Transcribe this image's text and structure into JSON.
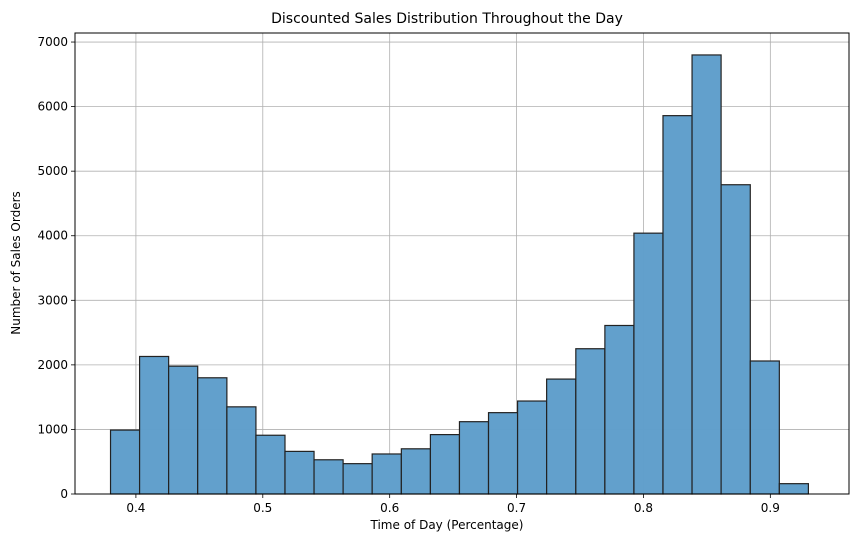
{
  "chart_data": {
    "type": "bar",
    "title": "Discounted Sales Distribution Throughout the Day",
    "xlabel": "Time of Day (Percentage)",
    "ylabel": "Number of Sales Orders",
    "xlim": [
      0.352,
      0.962
    ],
    "ylim": [
      0,
      7140
    ],
    "xticks": [
      0.4,
      0.5,
      0.6,
      0.7,
      0.8,
      0.9
    ],
    "xtick_labels": [
      "0.4",
      "0.5",
      "0.6",
      "0.7",
      "0.8",
      "0.9"
    ],
    "yticks": [
      0,
      1000,
      2000,
      3000,
      4000,
      5000,
      6000,
      7000
    ],
    "ytick_labels": [
      "0",
      "1000",
      "2000",
      "3000",
      "4000",
      "5000",
      "6000",
      "7000"
    ],
    "grid": true,
    "bin_edges": [
      0.38,
      0.4029,
      0.4258,
      0.4487,
      0.4717,
      0.4946,
      0.5175,
      0.5404,
      0.5633,
      0.5862,
      0.6092,
      0.6321,
      0.655,
      0.6779,
      0.7008,
      0.7237,
      0.7467,
      0.7696,
      0.7925,
      0.8154,
      0.8383,
      0.8612,
      0.8842,
      0.9071,
      0.93
    ],
    "values": [
      990,
      2130,
      1980,
      1800,
      1350,
      910,
      660,
      530,
      470,
      620,
      700,
      920,
      1120,
      1260,
      1440,
      1780,
      2250,
      2610,
      4040,
      5860,
      6800,
      4790,
      2060,
      160
    ],
    "bar_color": "#5f9ecb",
    "edge_color": "#222222"
  }
}
